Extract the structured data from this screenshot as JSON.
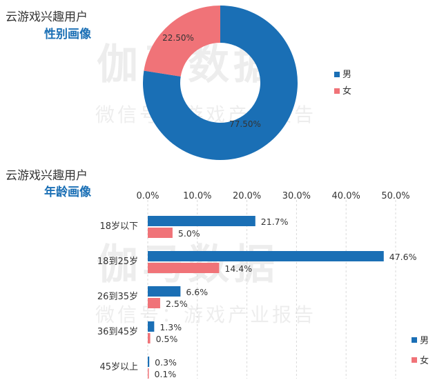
{
  "watermark": {
    "brand": "伽马数据",
    "sub": "微信号：游戏产业报告"
  },
  "colors": {
    "male": "#1a6fb5",
    "female": "#f07378",
    "title_accent": "#1a6fb5"
  },
  "chart_data": [
    {
      "type": "pie",
      "title": "云游戏兴趣用户",
      "subtitle": "性别画像",
      "slices": [
        {
          "name": "男",
          "value": 77.5,
          "label": "77.50%"
        },
        {
          "name": "女",
          "value": 22.5,
          "label": "22.50%"
        }
      ],
      "legend": [
        "男",
        "女"
      ],
      "legend_position": "right"
    },
    {
      "type": "bar",
      "orientation": "horizontal",
      "title": "云游戏兴趣用户",
      "subtitle": "年龄画像",
      "categories": [
        "18岁以下",
        "18到25岁",
        "26到35岁",
        "36到45岁",
        "45岁以上"
      ],
      "series": [
        {
          "name": "男",
          "values": [
            21.7,
            47.6,
            6.6,
            1.3,
            0.3
          ]
        },
        {
          "name": "女",
          "values": [
            5.0,
            14.4,
            2.5,
            0.5,
            0.1
          ]
        }
      ],
      "xlim": [
        0,
        50
      ],
      "xticks": [
        "0.0%",
        "10.0%",
        "20.0%",
        "30.0%",
        "40.0%",
        "50.0%"
      ],
      "grid": true,
      "legend": [
        "男",
        "女"
      ],
      "legend_position": "bottom-right"
    }
  ]
}
